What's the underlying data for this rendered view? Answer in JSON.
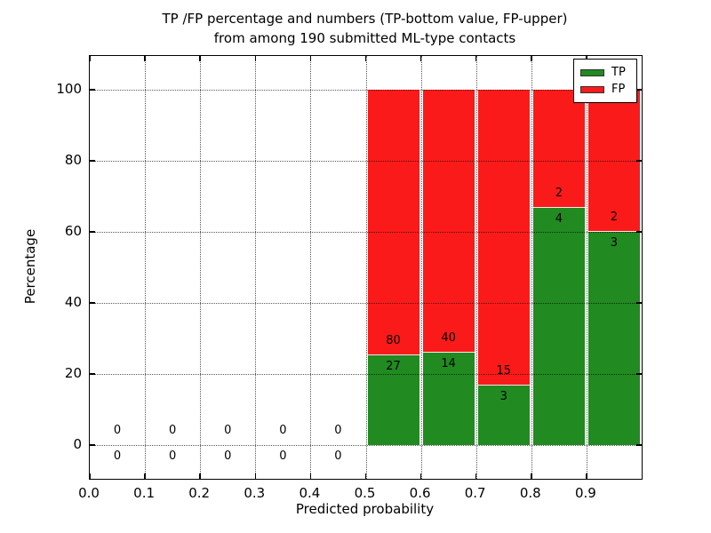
{
  "title": {
    "line1": "TP /FP percentage and numbers (TP-bottom value, FP-upper)",
    "line2": "from among 190 submitted ML-type contacts"
  },
  "colors": {
    "tp": "#218a21",
    "fp": "#fb1a1a",
    "grid": "#000000",
    "axis": "#000000",
    "background": "#ffffff"
  },
  "chart_data": {
    "type": "bar",
    "stacked": true,
    "title": "TP /FP percentage and numbers (TP-bottom value, FP-upper) from among 190 submitted ML-type contacts",
    "xlabel": "Predicted probability",
    "ylabel": "Percentage",
    "xlim": [
      0.0,
      1.0
    ],
    "ylim": [
      -9.5,
      109.5
    ],
    "grid": true,
    "total_contacts": 190,
    "xticks": [
      {
        "value": 0.0,
        "label": "0.0"
      },
      {
        "value": 0.1,
        "label": "0.1"
      },
      {
        "value": 0.2,
        "label": "0.2"
      },
      {
        "value": 0.3,
        "label": "0.3"
      },
      {
        "value": 0.4,
        "label": "0.4"
      },
      {
        "value": 0.5,
        "label": "0.5"
      },
      {
        "value": 0.6,
        "label": "0.6"
      },
      {
        "value": 0.7,
        "label": "0.7"
      },
      {
        "value": 0.8,
        "label": "0.8"
      },
      {
        "value": 0.9,
        "label": "0.9"
      }
    ],
    "yticks": [
      {
        "value": 0,
        "label": "0"
      },
      {
        "value": 20,
        "label": "20"
      },
      {
        "value": 40,
        "label": "40"
      },
      {
        "value": 60,
        "label": "60"
      },
      {
        "value": 80,
        "label": "80"
      },
      {
        "value": 100,
        "label": "100"
      }
    ],
    "legend": {
      "position": "upper right",
      "entries": [
        {
          "label": "TP",
          "color": "#218a21"
        },
        {
          "label": "FP",
          "color": "#fb1a1a"
        }
      ]
    },
    "bins": [
      {
        "range": [
          0.0,
          0.1
        ],
        "tp_count": 0,
        "fp_count": 0,
        "tp_pct": 0,
        "fp_pct": 0
      },
      {
        "range": [
          0.1,
          0.2
        ],
        "tp_count": 0,
        "fp_count": 0,
        "tp_pct": 0,
        "fp_pct": 0
      },
      {
        "range": [
          0.2,
          0.3
        ],
        "tp_count": 0,
        "fp_count": 0,
        "tp_pct": 0,
        "fp_pct": 0
      },
      {
        "range": [
          0.3,
          0.4
        ],
        "tp_count": 0,
        "fp_count": 0,
        "tp_pct": 0,
        "fp_pct": 0
      },
      {
        "range": [
          0.4,
          0.5
        ],
        "tp_count": 0,
        "fp_count": 0,
        "tp_pct": 0,
        "fp_pct": 0
      },
      {
        "range": [
          0.5,
          0.6
        ],
        "tp_count": 27,
        "fp_count": 80,
        "tp_pct": 25.23,
        "fp_pct": 74.77
      },
      {
        "range": [
          0.6,
          0.7
        ],
        "tp_count": 14,
        "fp_count": 40,
        "tp_pct": 25.93,
        "fp_pct": 74.07
      },
      {
        "range": [
          0.7,
          0.8
        ],
        "tp_count": 3,
        "fp_count": 15,
        "tp_pct": 16.67,
        "fp_pct": 83.33
      },
      {
        "range": [
          0.8,
          0.9
        ],
        "tp_count": 4,
        "fp_count": 2,
        "tp_pct": 66.67,
        "fp_pct": 33.33
      },
      {
        "range": [
          0.9,
          1.0
        ],
        "tp_count": 3,
        "fp_count": 2,
        "tp_pct": 60.0,
        "fp_pct": 40.0
      }
    ]
  }
}
